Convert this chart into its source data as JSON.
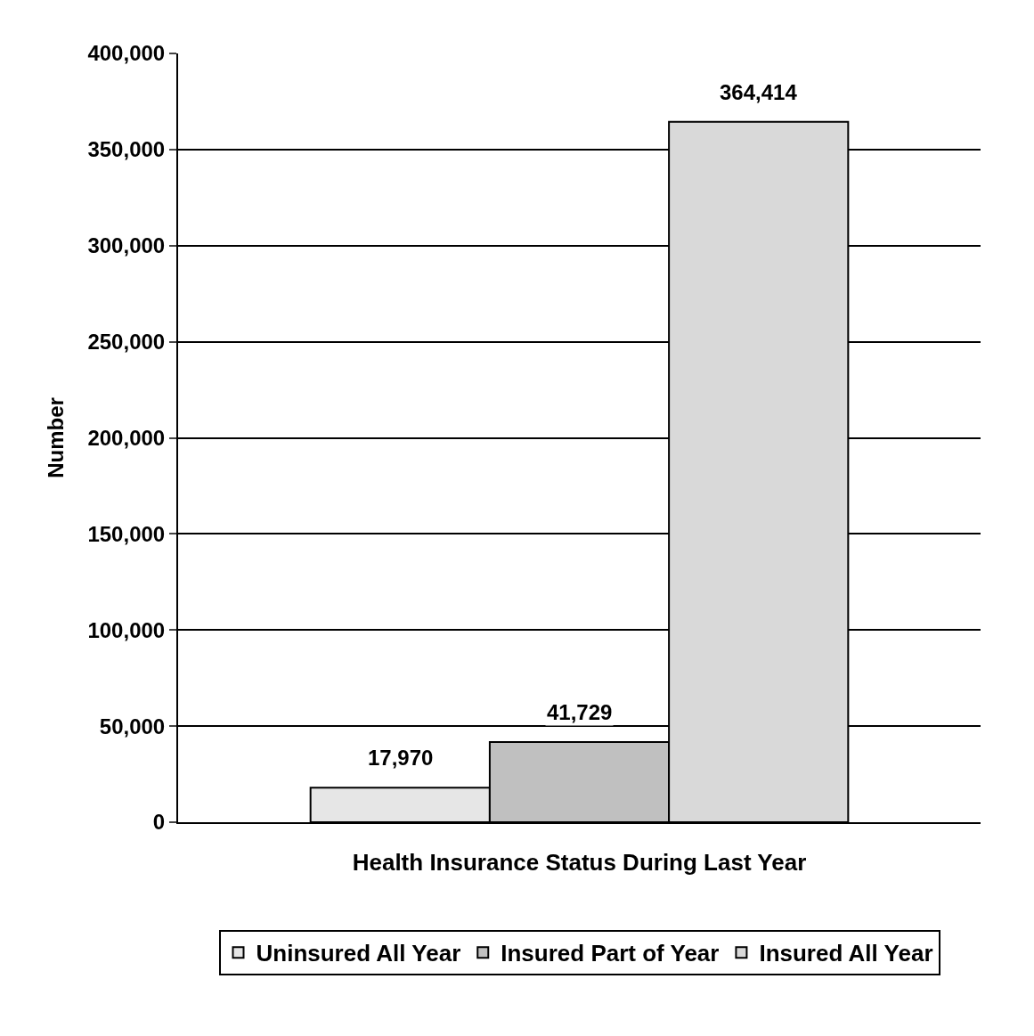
{
  "chart_data": {
    "type": "bar",
    "xlabel": "Health Insurance Status During Last Year",
    "ylabel": "Number",
    "categories": [
      null
    ],
    "series": [
      {
        "name": "Uninsured All Year",
        "color": "#e6e6e6",
        "values": [
          17970
        ],
        "value_labels": [
          "17,970"
        ]
      },
      {
        "name": "Insured Part of Year",
        "color": "#c0c0c0",
        "values": [
          41729
        ],
        "value_labels": [
          "41,729"
        ]
      },
      {
        "name": "Insured All Year",
        "color": "#d9d9d9",
        "values": [
          364414
        ],
        "value_labels": [
          "364,414"
        ]
      }
    ],
    "ylim": [
      0,
      400000
    ],
    "yticks": [
      0,
      {
        "value": 50000,
        "label": "50,000"
      },
      {
        "value": 100000,
        "label": "100,000"
      },
      {
        "value": 150000,
        "label": "150,000"
      },
      {
        "value": 200000,
        "label": "200,000"
      },
      {
        "value": 250000,
        "label": "250,000"
      },
      {
        "value": 300000,
        "label": "300,000"
      },
      {
        "value": 350000,
        "label": "350,000"
      },
      {
        "value": 400000,
        "label": "400,000"
      }
    ],
    "grid": "y",
    "legend": "bottom"
  }
}
